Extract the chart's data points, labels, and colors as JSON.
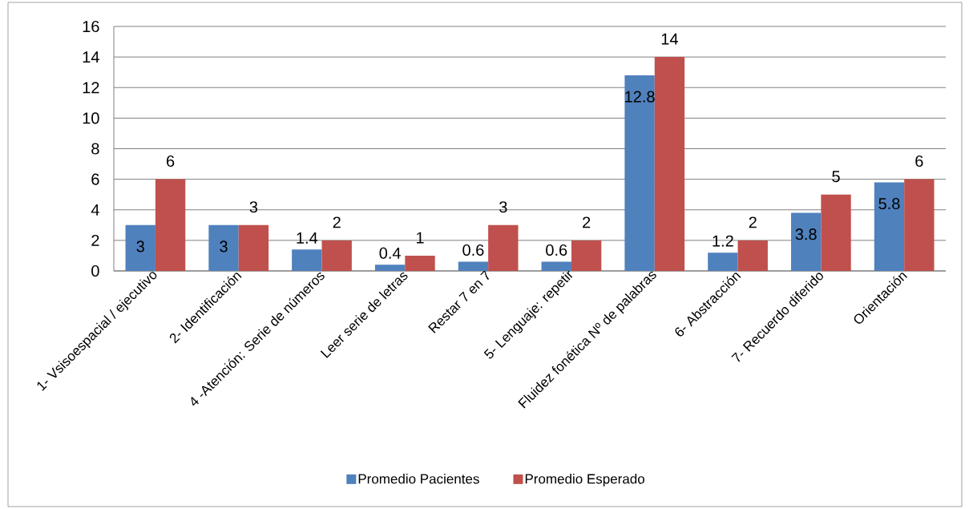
{
  "chart_data": {
    "type": "bar",
    "categories": [
      "1- Vsisoespacial / ejecutivo",
      "2- Identificación",
      "4 -Atención: Serie de números",
      "Leer serie de letras",
      "Restar 7 en 7",
      "5- Lenguaje: repetir",
      "Fluidez fonética Nº de palabras",
      "6- Abstracción",
      "7- Recuerdo diferido",
      "Orientación"
    ],
    "series": [
      {
        "name": "Promedio Pacientes",
        "color": "#4f81bd",
        "values": [
          3,
          3,
          1.4,
          0.4,
          0.6,
          0.6,
          12.8,
          1.2,
          3.8,
          5.8
        ]
      },
      {
        "name": "Promedio Esperado",
        "color": "#c0504d",
        "values": [
          6,
          3,
          2,
          1,
          3,
          2,
          14,
          2,
          5,
          6
        ]
      }
    ],
    "ylim": [
      0,
      16
    ],
    "yticks": [
      0,
      2,
      4,
      6,
      8,
      10,
      12,
      14,
      16
    ],
    "grid": "y",
    "legend": "bottom",
    "data_labels": true
  }
}
